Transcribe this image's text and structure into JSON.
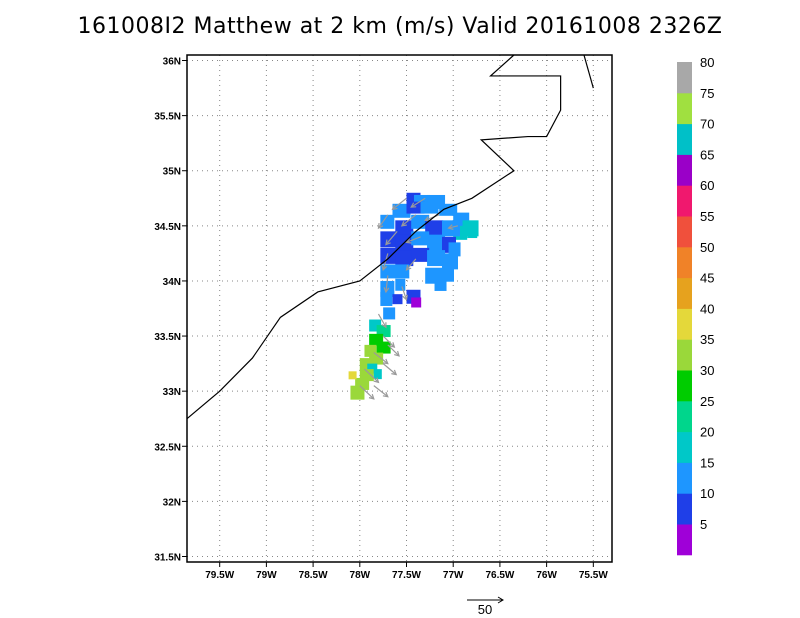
{
  "title": "161008I2 Matthew at 2 km (m/s) Valid 20161008  2326Z",
  "map": {
    "lon_range": [
      -79.85,
      -75.3
    ],
    "lat_range": [
      31.45,
      36.05
    ],
    "lat_ticks": [
      "31.5N",
      "32N",
      "32.5N",
      "33N",
      "33.5N",
      "34N",
      "34.5N",
      "35N",
      "35.5N",
      "36N"
    ],
    "lat_values": [
      31.5,
      32,
      32.5,
      33,
      33.5,
      34,
      34.5,
      35,
      35.5,
      36
    ],
    "lon_ticks": [
      "79.5W",
      "79W",
      "78.5W",
      "78W",
      "77.5W",
      "77W",
      "76.5W",
      "76W",
      "75.5W"
    ],
    "lon_values": [
      -79.5,
      -79,
      -78.5,
      -78,
      -77.5,
      -77,
      -76.5,
      -76,
      -75.5
    ],
    "grid": "dotted",
    "coastline": [
      [
        -79.85,
        32.75
      ],
      [
        -79.5,
        33.0
      ],
      [
        -79.15,
        33.3
      ],
      [
        -78.85,
        33.67
      ],
      [
        -78.45,
        33.9
      ],
      [
        -78.0,
        34.0
      ],
      [
        -77.7,
        34.2
      ],
      [
        -77.4,
        34.45
      ],
      [
        -77.1,
        34.65
      ],
      [
        -76.8,
        34.75
      ],
      [
        -76.35,
        35.0
      ],
      [
        -76.7,
        35.28
      ],
      [
        -76.2,
        35.31
      ],
      [
        -76.0,
        35.31
      ],
      [
        -75.85,
        35.55
      ],
      [
        -75.85,
        35.86
      ],
      [
        -76.6,
        35.86
      ],
      [
        -76.35,
        36.05
      ]
    ],
    "coastline_ne": [
      [
        -75.6,
        36.05
      ],
      [
        -75.5,
        35.75
      ]
    ]
  },
  "colorbar": {
    "labels": [
      "5",
      "10",
      "15",
      "20",
      "25",
      "30",
      "35",
      "40",
      "45",
      "50",
      "55",
      "60",
      "65",
      "70",
      "75",
      "80"
    ],
    "colors": [
      "#9f00d8",
      "#1f3fe8",
      "#1e96ff",
      "#00c8c8",
      "#00d68c",
      "#00cc00",
      "#9ad83a",
      "#e4d83a",
      "#e6a21e",
      "#f08228",
      "#f0503c",
      "#f0186e",
      "#9a00c8",
      "#00c0c8",
      "#a0e040",
      "#a8a8a8"
    ]
  },
  "vector_ref": {
    "label": "50"
  }
}
